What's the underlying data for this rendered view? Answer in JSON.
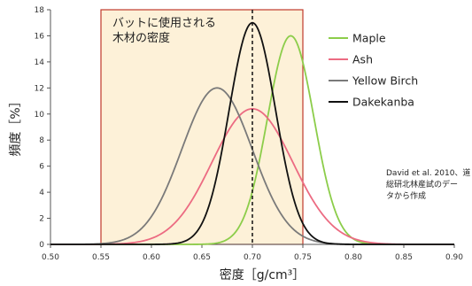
{
  "chart_data": {
    "type": "line",
    "xlabel": "密度［g/cm³］",
    "ylabel": "頻度［%］",
    "xlim": [
      0.5,
      0.9
    ],
    "ylim": [
      0,
      18
    ],
    "x_ticks": [
      0.5,
      0.55,
      0.6,
      0.65,
      0.7,
      0.75,
      0.8,
      0.85,
      0.9
    ],
    "x_tick_labels": [
      "0.50",
      "0.55",
      "0.60",
      "0.65",
      "0.70",
      "0.75",
      "0.80",
      "0.85",
      "0.90"
    ],
    "y_ticks": [
      0,
      2,
      4,
      6,
      8,
      10,
      12,
      14,
      16,
      18
    ],
    "y_tick_labels": [
      "0",
      "2",
      "4",
      "6",
      "8",
      "10",
      "12",
      "14",
      "16",
      "18"
    ],
    "grid": false,
    "legend_placement": "top-right",
    "series": [
      {
        "name": "Maple",
        "color": "#8ccd4a",
        "mean": 0.738,
        "sd": 0.023,
        "peak": 16.0
      },
      {
        "name": "Ash",
        "color": "#ec6b82",
        "mean": 0.7,
        "sd": 0.04,
        "peak": 10.4
      },
      {
        "name": "Yellow Birch",
        "color": "#7a7a7a",
        "mean": 0.665,
        "sd": 0.035,
        "peak": 12.0
      },
      {
        "name": "Dakekanba",
        "color": "#111111",
        "mean": 0.7,
        "sd": 0.023,
        "peak": 17.0
      }
    ],
    "band": {
      "x_range": [
        0.55,
        0.75
      ],
      "fill": "#fdf1d8",
      "border": "#c03a2b",
      "label_lines": [
        "バットに使用される",
        "木材の密度"
      ]
    },
    "vline": {
      "x": 0.7,
      "style": "dashed"
    },
    "annotation_lines": [
      "David et al. 2010、道",
      "総研北林産試のデー",
      "タから作成"
    ]
  }
}
